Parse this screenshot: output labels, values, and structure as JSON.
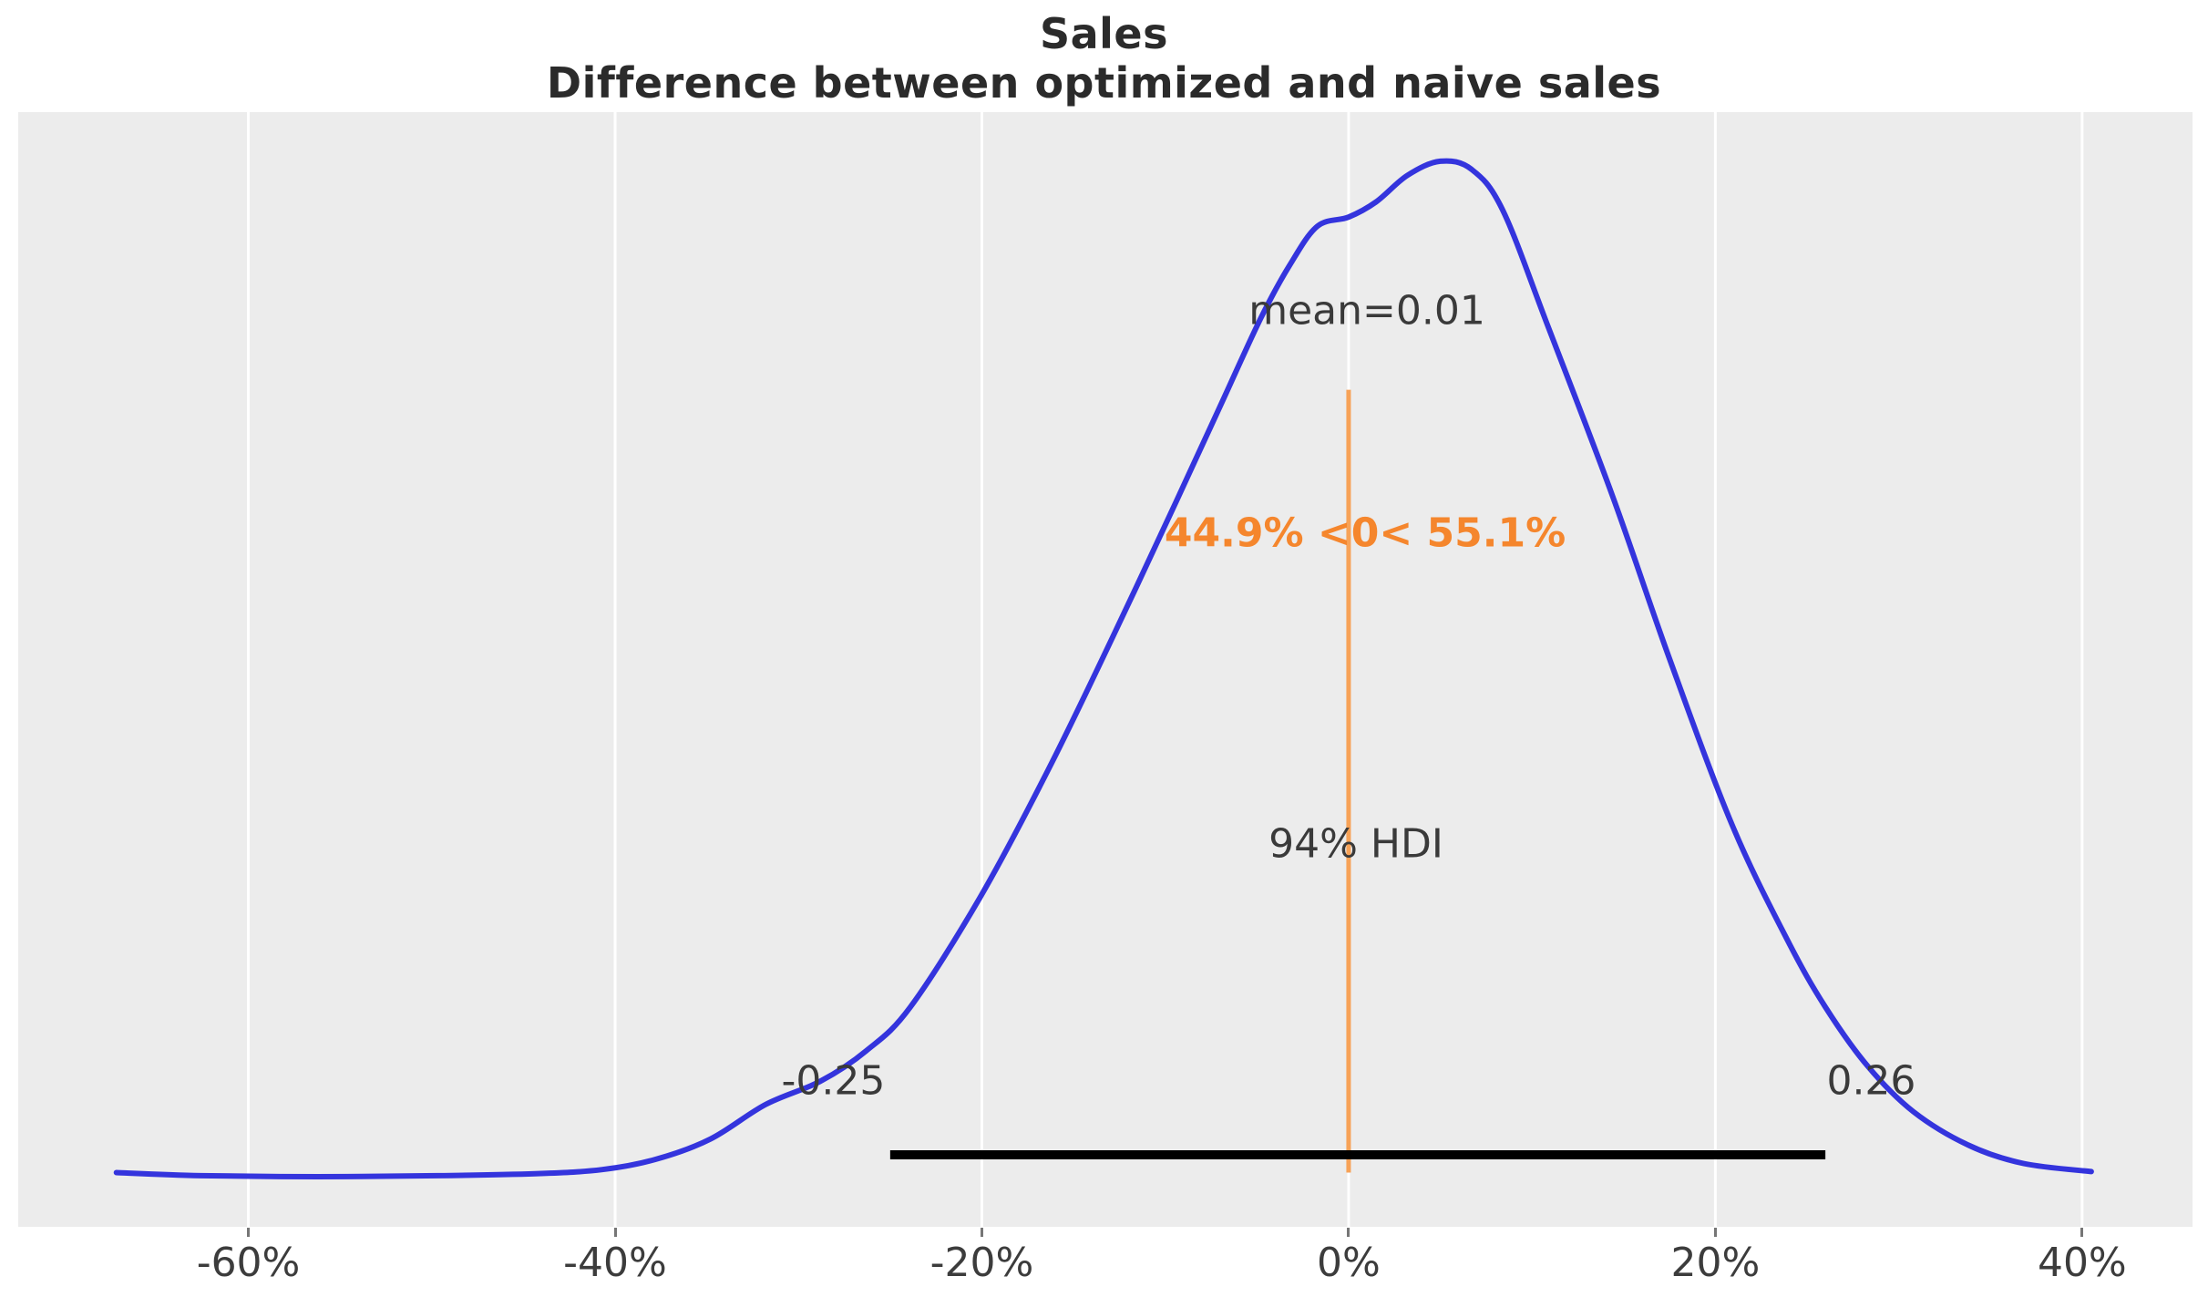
{
  "title": {
    "line1": "Sales",
    "line2": "Difference between optimized and naive sales",
    "color": "#2b2b2b"
  },
  "chart_data": {
    "type": "line",
    "subtype": "posterior-density-kde",
    "title_lines": [
      "Sales",
      "Difference between optimized and naive sales"
    ],
    "xlabel": "",
    "ylabel": "",
    "xlim": [
      -0.7255,
      0.4602
    ],
    "ylim": [
      -0.0494,
      1.0484
    ],
    "grid": true,
    "plot_bg": "#ececec",
    "gridline_color": "#ffffff",
    "tick_mark_color": "#767676",
    "tick_label_color": "#3c3c3c",
    "x_ticks": {
      "values": [
        -0.6,
        -0.4,
        -0.2,
        0.0,
        0.2,
        0.4
      ],
      "labels": [
        "-60%",
        "-40%",
        "-20%",
        "0%",
        "20%",
        "40%"
      ]
    },
    "series": [
      {
        "name": "posterior-density",
        "color": "#3434dd",
        "line_width": 6,
        "x": [
          -0.672,
          -0.626,
          -0.562,
          -0.497,
          -0.442,
          -0.407,
          -0.378,
          -0.348,
          -0.318,
          -0.288,
          -0.263,
          -0.239,
          -0.201,
          -0.164,
          -0.129,
          -0.094,
          -0.07,
          -0.048,
          -0.032,
          -0.017,
          0.0,
          0.015,
          0.032,
          0.05,
          0.067,
          0.084,
          0.109,
          0.144,
          0.175,
          0.209,
          0.239,
          0.26,
          0.283,
          0.308,
          0.338,
          0.368,
          0.405
        ],
        "density": [
          0.004,
          0.001,
          0.0,
          0.001,
          0.003,
          0.007,
          0.017,
          0.037,
          0.071,
          0.094,
          0.124,
          0.167,
          0.275,
          0.4,
          0.53,
          0.665,
          0.759,
          0.845,
          0.898,
          0.936,
          0.945,
          0.96,
          0.986,
          1.0,
          0.992,
          0.952,
          0.836,
          0.67,
          0.51,
          0.347,
          0.234,
          0.167,
          0.109,
          0.064,
          0.031,
          0.013,
          0.005
        ]
      }
    ],
    "hdi": {
      "label": "94% HDI",
      "lo": -0.25,
      "hi": 0.26,
      "lo_label": "-0.25",
      "hi_label": "0.26",
      "y": 0.0215,
      "color": "#000000",
      "line_width": 10
    },
    "ref_line": {
      "x": 0.0,
      "y_from": 0.004,
      "y_to": 0.775,
      "color": "#f7a257",
      "line_width": 5
    },
    "mean": 0.01,
    "prob_below_ref": "44.9%",
    "prob_above_ref": "55.1%",
    "annotations": [
      {
        "id": "mean-label",
        "text": "mean=0.01",
        "x": 0.01,
        "y": 0.853,
        "color": "#3a3a3a",
        "weight": "normal"
      },
      {
        "id": "ref-prob-label",
        "text": "44.9% <0< 55.1%",
        "x": 0.009,
        "y": 0.634,
        "color": "#f5862d",
        "weight": "bold"
      },
      {
        "id": "hdi-title",
        "text": "94% HDI",
        "x": 0.004,
        "y": 0.328,
        "color": "#3a3a3a",
        "weight": "normal"
      },
      {
        "id": "hdi-lo-label",
        "text": "-0.25",
        "x": -0.281,
        "y": 0.094,
        "color": "#3a3a3a",
        "weight": "normal"
      },
      {
        "id": "hdi-hi-label",
        "text": "0.26",
        "x": 0.285,
        "y": 0.094,
        "color": "#3a3a3a",
        "weight": "normal"
      }
    ]
  }
}
